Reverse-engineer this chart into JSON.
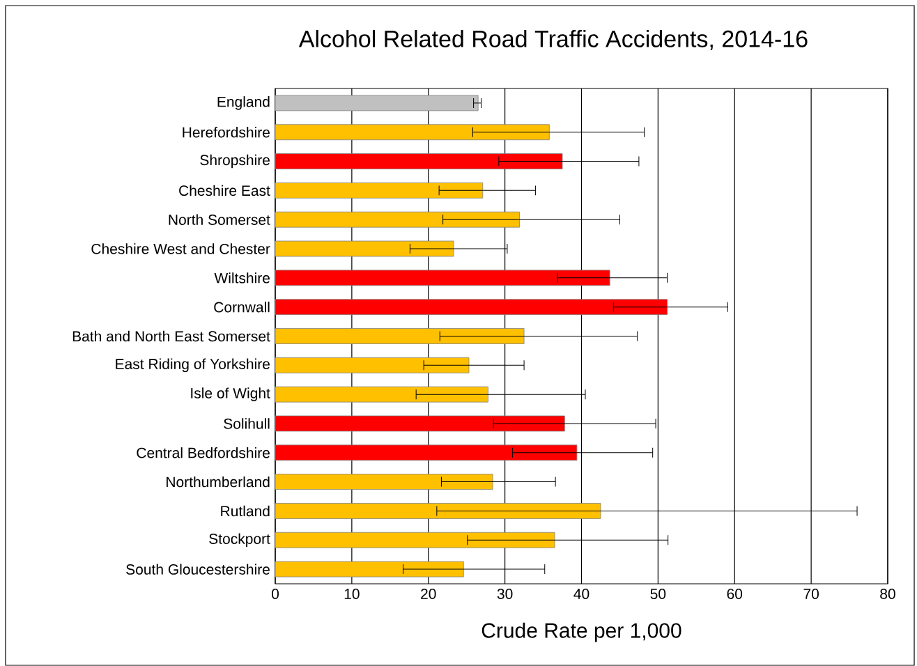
{
  "chart_data": {
    "type": "bar",
    "orientation": "horizontal",
    "title": "Alcohol Related Road Traffic Accidents, 2014-16",
    "xlabel": "Crude Rate per 1,000",
    "categories": [
      "England",
      "Herefordshire",
      "Shropshire",
      "Cheshire East",
      "North Somerset",
      "Cheshire West and Chester",
      "Wiltshire",
      "Cornwall",
      "Bath and North East Somerset",
      "East Riding of Yorkshire",
      "Isle of Wight",
      "Solihull",
      "Central Bedfordshire",
      "Northumberland",
      "Rutland",
      "Stockport",
      "South Gloucestershire"
    ],
    "values": [
      26.5,
      35.8,
      37.5,
      27.1,
      31.9,
      23.3,
      43.7,
      51.2,
      32.5,
      25.3,
      27.8,
      37.8,
      39.4,
      28.4,
      42.5,
      36.5,
      24.6
    ],
    "errors": [
      [
        25.9,
        26.9
      ],
      [
        25.8,
        48.2
      ],
      [
        29.2,
        47.5
      ],
      [
        21.4,
        34.0
      ],
      [
        21.9,
        45.0
      ],
      [
        17.6,
        30.3
      ],
      [
        36.9,
        51.2
      ],
      [
        44.2,
        59.1
      ],
      [
        21.5,
        47.3
      ],
      [
        19.4,
        32.5
      ],
      [
        18.4,
        40.5
      ],
      [
        28.5,
        49.7
      ],
      [
        31.0,
        49.3
      ],
      [
        21.7,
        36.6
      ],
      [
        21.1,
        76.0
      ],
      [
        25.1,
        51.3
      ],
      [
        16.7,
        35.2
      ]
    ],
    "colors": [
      "#c0c0c0",
      "#ffc000",
      "#ff0000",
      "#ffc000",
      "#ffc000",
      "#ffc000",
      "#ff0000",
      "#ff0000",
      "#ffc000",
      "#ffc000",
      "#ffc000",
      "#ff0000",
      "#ff0000",
      "#ffc000",
      "#ffc000",
      "#ffc000",
      "#ffc000"
    ],
    "xlim": [
      0,
      80
    ],
    "xticks": [
      0,
      10,
      20,
      30,
      40,
      50,
      60,
      70,
      80
    ],
    "grid": "x"
  }
}
